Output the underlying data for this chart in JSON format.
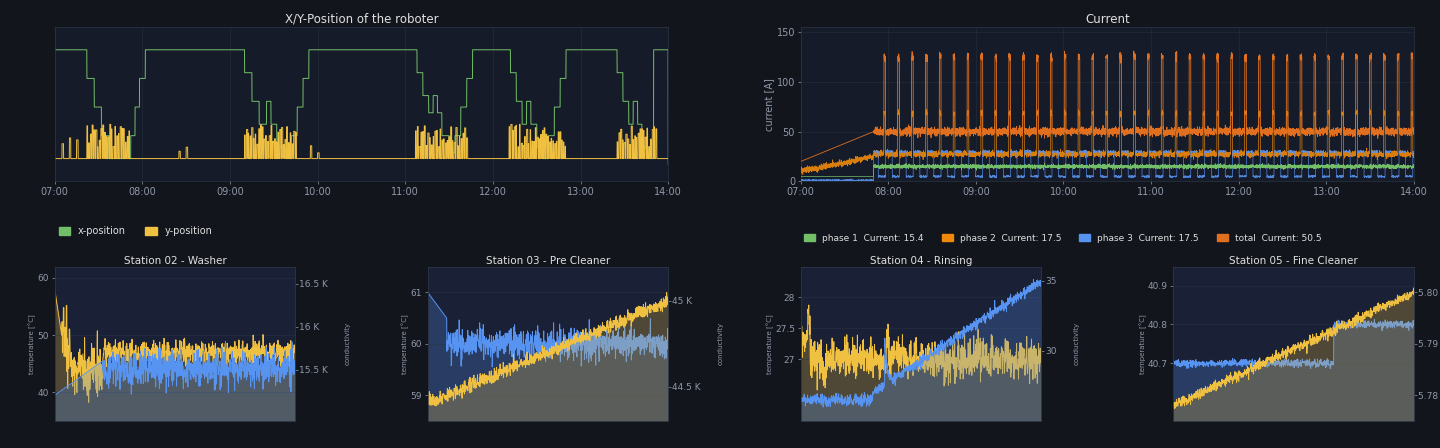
{
  "dark_bg": "#12151c",
  "panel_bg": "#161b27",
  "panel_bg2": "#1a2035",
  "grid_color": "#2a3545",
  "text_color": "#e0e0e0",
  "tick_color": "#9099aa",
  "separator_color": "#2a3545",
  "top_left_title": "X/Y-Position of the roboter",
  "top_right_title": "Current",
  "bot_titles": [
    "Station 02 - Washer",
    "Station 03 - Pre Cleaner",
    "Station 04 - Rinsing",
    "Station 05 - Fine Cleaner"
  ],
  "time_labels": [
    "07:00",
    "08:00",
    "09:00",
    "10:00",
    "11:00",
    "12:00",
    "13:00",
    "14:00"
  ],
  "time_ticks": [
    0,
    60,
    120,
    180,
    240,
    300,
    360,
    420
  ],
  "legend_xy": [
    "x-position",
    "y-position"
  ],
  "legend_xy_colors": [
    "#73bf69",
    "#f0c040"
  ],
  "legend_current": [
    "phase 1  Current: 15.4",
    "phase 2  Current: 17.5",
    "phase 3  Current: 17.5",
    "total  Current: 50.5"
  ],
  "legend_current_colors": [
    "#73bf69",
    "#f0890a",
    "#5794f2",
    "#e07020"
  ],
  "xy_color_x": "#73bf69",
  "xy_color_y": "#f0c040",
  "current_color_phase1": "#73bf69",
  "current_color_phase2": "#f0890a",
  "current_color_phase3": "#5794f2",
  "current_color_total": "#e07020",
  "washer_temp_color": "#f0c040",
  "washer_cond_color": "#5794f2",
  "precleaner_temp_color": "#5794f2",
  "precleaner_cond_color": "#f0c040",
  "rinsing_temp_color": "#f0c040",
  "rinsing_cond_color": "#5794f2",
  "finecleaner_temp_color": "#5794f2",
  "finecleaner_cond_color": "#f0c040",
  "bot_ylabel": "temperature [°C]",
  "bot_ylabel2": "conductivity",
  "washer_ylim_temp": [
    35,
    62
  ],
  "washer_ylim_cond": [
    14.9,
    16.7
  ],
  "washer_yticks_temp": [
    40,
    50,
    60
  ],
  "washer_yticks_cond": [
    15.5,
    16.0,
    16.5
  ],
  "washer_ytick_labels_cond": [
    "15.5 K",
    "16 K",
    "16.5 K"
  ],
  "precleaner_ylim_temp": [
    58.5,
    61.5
  ],
  "precleaner_ylim_cond": [
    44.3,
    45.2
  ],
  "precleaner_yticks_temp": [
    59,
    60,
    61
  ],
  "precleaner_yticks_cond": [
    44.5,
    45.0
  ],
  "precleaner_ytick_labels_cond": [
    "44.5 K",
    "45 K"
  ],
  "rinsing_ylim_temp": [
    26.0,
    28.5
  ],
  "rinsing_ylim_cond": [
    25,
    36
  ],
  "rinsing_yticks_temp": [
    27,
    27.5,
    28
  ],
  "rinsing_yticks_cond": [
    30,
    35
  ],
  "rinsing_ytick_labels_cond": [
    "30",
    "35"
  ],
  "finecleaner_ylim_temp": [
    40.55,
    40.95
  ],
  "finecleaner_ylim_cond": [
    5.775,
    5.805
  ],
  "finecleaner_yticks_temp": [
    40.7,
    40.8,
    40.9
  ],
  "finecleaner_yticks_cond": [
    5.78,
    5.79,
    5.8
  ],
  "finecleaner_ytick_labels_cond": [
    "5.78 K",
    "5.79 K",
    "5.80 K"
  ]
}
